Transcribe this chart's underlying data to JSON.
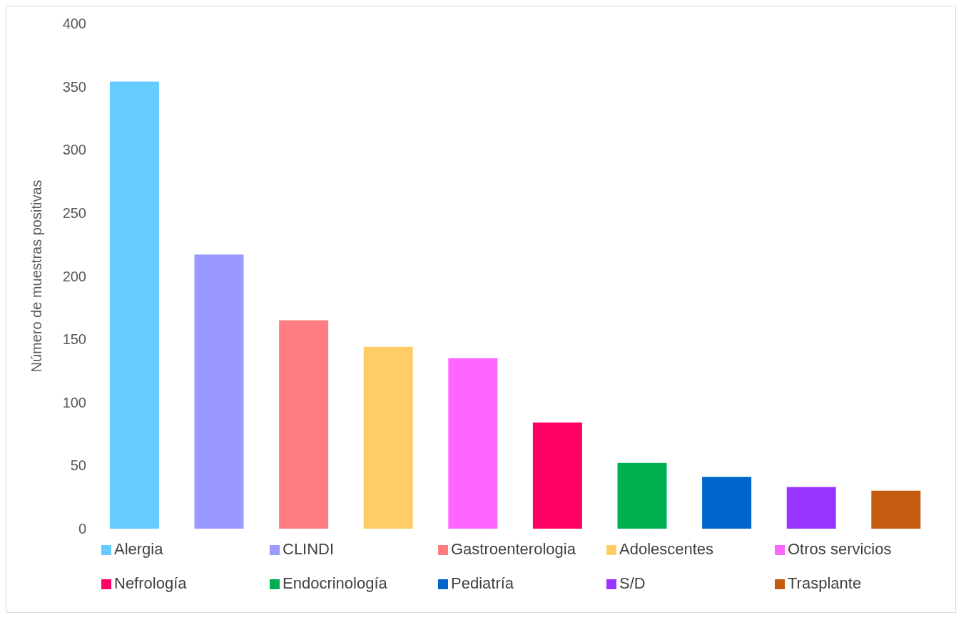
{
  "chart_data": {
    "type": "bar",
    "ylabel": "Número de muestras positivas",
    "categories": [
      null,
      null,
      null,
      null,
      null,
      null,
      null,
      null,
      null,
      null
    ],
    "stacked": true,
    "series": [
      {
        "name": "Alergia",
        "color": "#66ccff",
        "values": [
          354,
          null,
          null,
          null,
          null,
          null,
          null,
          null,
          null,
          null
        ]
      },
      {
        "name": "CLINDI",
        "color": "#9999ff",
        "values": [
          null,
          217,
          null,
          null,
          null,
          null,
          null,
          null,
          null,
          null
        ]
      },
      {
        "name": "Gastroenterologia",
        "color": "#ff7c80",
        "values": [
          null,
          null,
          165,
          null,
          null,
          null,
          null,
          null,
          null,
          null
        ]
      },
      {
        "name": "Adolescentes",
        "color": "#ffcc66",
        "values": [
          null,
          null,
          null,
          144,
          null,
          null,
          null,
          null,
          null,
          null
        ]
      },
      {
        "name": "Otros servicios",
        "color": "#ff66ff",
        "values": [
          null,
          null,
          null,
          null,
          135,
          null,
          null,
          null,
          null,
          null
        ]
      },
      {
        "name": "Nefrología",
        "color": "#ff0066",
        "values": [
          null,
          null,
          null,
          null,
          null,
          84,
          null,
          null,
          null,
          null
        ]
      },
      {
        "name": "Endocrinología",
        "color": "#00b050",
        "values": [
          null,
          null,
          null,
          null,
          null,
          null,
          52,
          null,
          null,
          null
        ]
      },
      {
        "name": "Pediatría",
        "color": "#0066cc",
        "values": [
          null,
          null,
          null,
          null,
          null,
          null,
          null,
          41,
          null,
          null
        ]
      },
      {
        "name": "S/D",
        "color": "#9933ff",
        "values": [
          null,
          null,
          null,
          null,
          null,
          null,
          null,
          null,
          33,
          null
        ]
      },
      {
        "name": "Trasplante",
        "color": "#c55a11",
        "values": [
          null,
          null,
          null,
          null,
          null,
          null,
          null,
          null,
          null,
          30
        ]
      }
    ],
    "ylim": [
      0,
      400
    ],
    "yticks": [
      0,
      50,
      100,
      150,
      200,
      250,
      300,
      350,
      400
    ],
    "grid": false,
    "legend": "bottom",
    "tick_labels": "y"
  }
}
